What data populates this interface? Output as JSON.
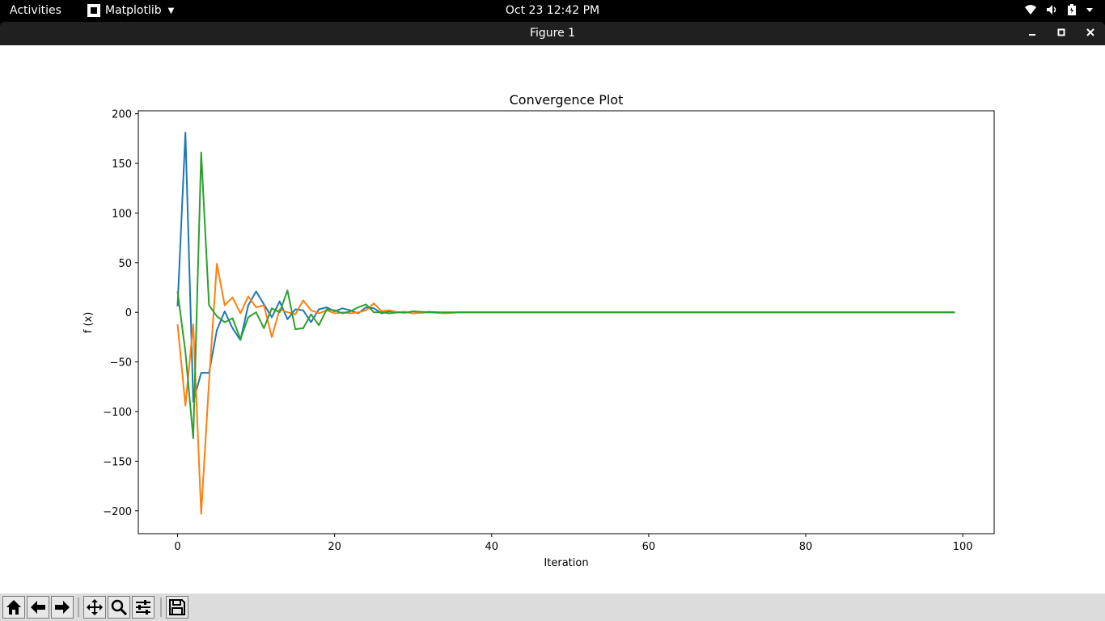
{
  "topbar": {
    "activities": "Activities",
    "app_menu": "Matplotlib",
    "clock": "Oct 23  12:42 PM",
    "tray_icons": [
      "wifi-icon",
      "volume-icon",
      "battery-icon",
      "chevron-down-icon"
    ]
  },
  "window": {
    "title": "Figure 1",
    "controls": [
      "minimize-icon",
      "maximize-icon",
      "close-icon"
    ]
  },
  "toolbar": {
    "buttons": [
      "home-icon",
      "back-arrow-icon",
      "forward-arrow-icon",
      "pan-icon",
      "zoom-icon",
      "configure-subplots-icon",
      "save-icon"
    ]
  },
  "colors": {
    "series1": "#1f77b4",
    "series2": "#ff7f0e",
    "series3": "#2ca02c"
  },
  "chart_data": {
    "type": "line",
    "title": "Convergence Plot",
    "xlabel": "Iteration",
    "ylabel": "f (x)",
    "xlim": [
      -5,
      104
    ],
    "ylim": [
      -223,
      203
    ],
    "xticks": [
      0,
      20,
      40,
      60,
      80,
      100
    ],
    "yticks": [
      200,
      150,
      100,
      50,
      0,
      -50,
      -100,
      -150,
      -200
    ],
    "grid": false,
    "legend": "none",
    "series": [
      {
        "color": "#1f77b4",
        "x": [
          0,
          1,
          2,
          3,
          4,
          5,
          6,
          7,
          8,
          9,
          10,
          11,
          12,
          13,
          14,
          15,
          16,
          17,
          18,
          19,
          20,
          21,
          22,
          23,
          24,
          25,
          26,
          27,
          28,
          29,
          30,
          32,
          34,
          36,
          38,
          40,
          45,
          50,
          60,
          70,
          80,
          90,
          99
        ],
        "y": [
          6,
          181,
          -90,
          -61,
          -61,
          -18,
          1,
          -16,
          -28,
          7,
          21,
          8,
          -5,
          11,
          -7,
          3,
          2,
          -10,
          3,
          5,
          1,
          4,
          2,
          -1,
          5,
          4,
          -1,
          1,
          0,
          0.5,
          -1,
          0.5,
          -0.5,
          0,
          0,
          0,
          0,
          0,
          0,
          0,
          0,
          0,
          0
        ]
      },
      {
        "color": "#ff7f0e",
        "x": [
          0,
          1,
          2,
          3,
          4,
          5,
          6,
          7,
          8,
          9,
          10,
          11,
          12,
          13,
          14,
          15,
          16,
          17,
          18,
          19,
          20,
          21,
          22,
          23,
          24,
          25,
          26,
          27,
          28,
          29,
          30,
          32,
          34,
          36,
          38,
          40,
          45,
          50,
          60,
          70,
          80,
          90,
          99
        ],
        "y": [
          -12,
          -94,
          -12,
          -203,
          -70,
          49,
          7,
          15,
          -1,
          16,
          5,
          7,
          -25,
          3,
          0,
          -2,
          12,
          2,
          -1,
          2,
          -1,
          0,
          -1,
          0,
          2,
          9,
          1,
          2,
          0,
          0.5,
          -1,
          0,
          -1,
          0,
          0,
          0,
          0,
          0,
          0,
          0,
          0,
          0,
          0
        ]
      },
      {
        "color": "#2ca02c",
        "x": [
          0,
          1,
          2,
          3,
          4,
          5,
          6,
          7,
          8,
          9,
          10,
          11,
          12,
          13,
          14,
          15,
          16,
          17,
          18,
          19,
          20,
          21,
          22,
          23,
          24,
          25,
          26,
          27,
          28,
          29,
          30,
          32,
          34,
          36,
          38,
          40,
          45,
          50,
          60,
          70,
          80,
          90,
          99
        ],
        "y": [
          21,
          -40,
          -127,
          161,
          7,
          -4,
          -10,
          -6,
          -27,
          -5,
          0,
          -16,
          4,
          0,
          22,
          -17,
          -16,
          -2,
          -13,
          3,
          2,
          -1,
          1,
          5,
          8,
          0,
          0,
          -1,
          0,
          -0.5,
          1,
          0,
          0,
          0,
          0,
          0,
          0,
          0,
          0,
          0,
          0,
          0,
          0
        ]
      }
    ]
  }
}
